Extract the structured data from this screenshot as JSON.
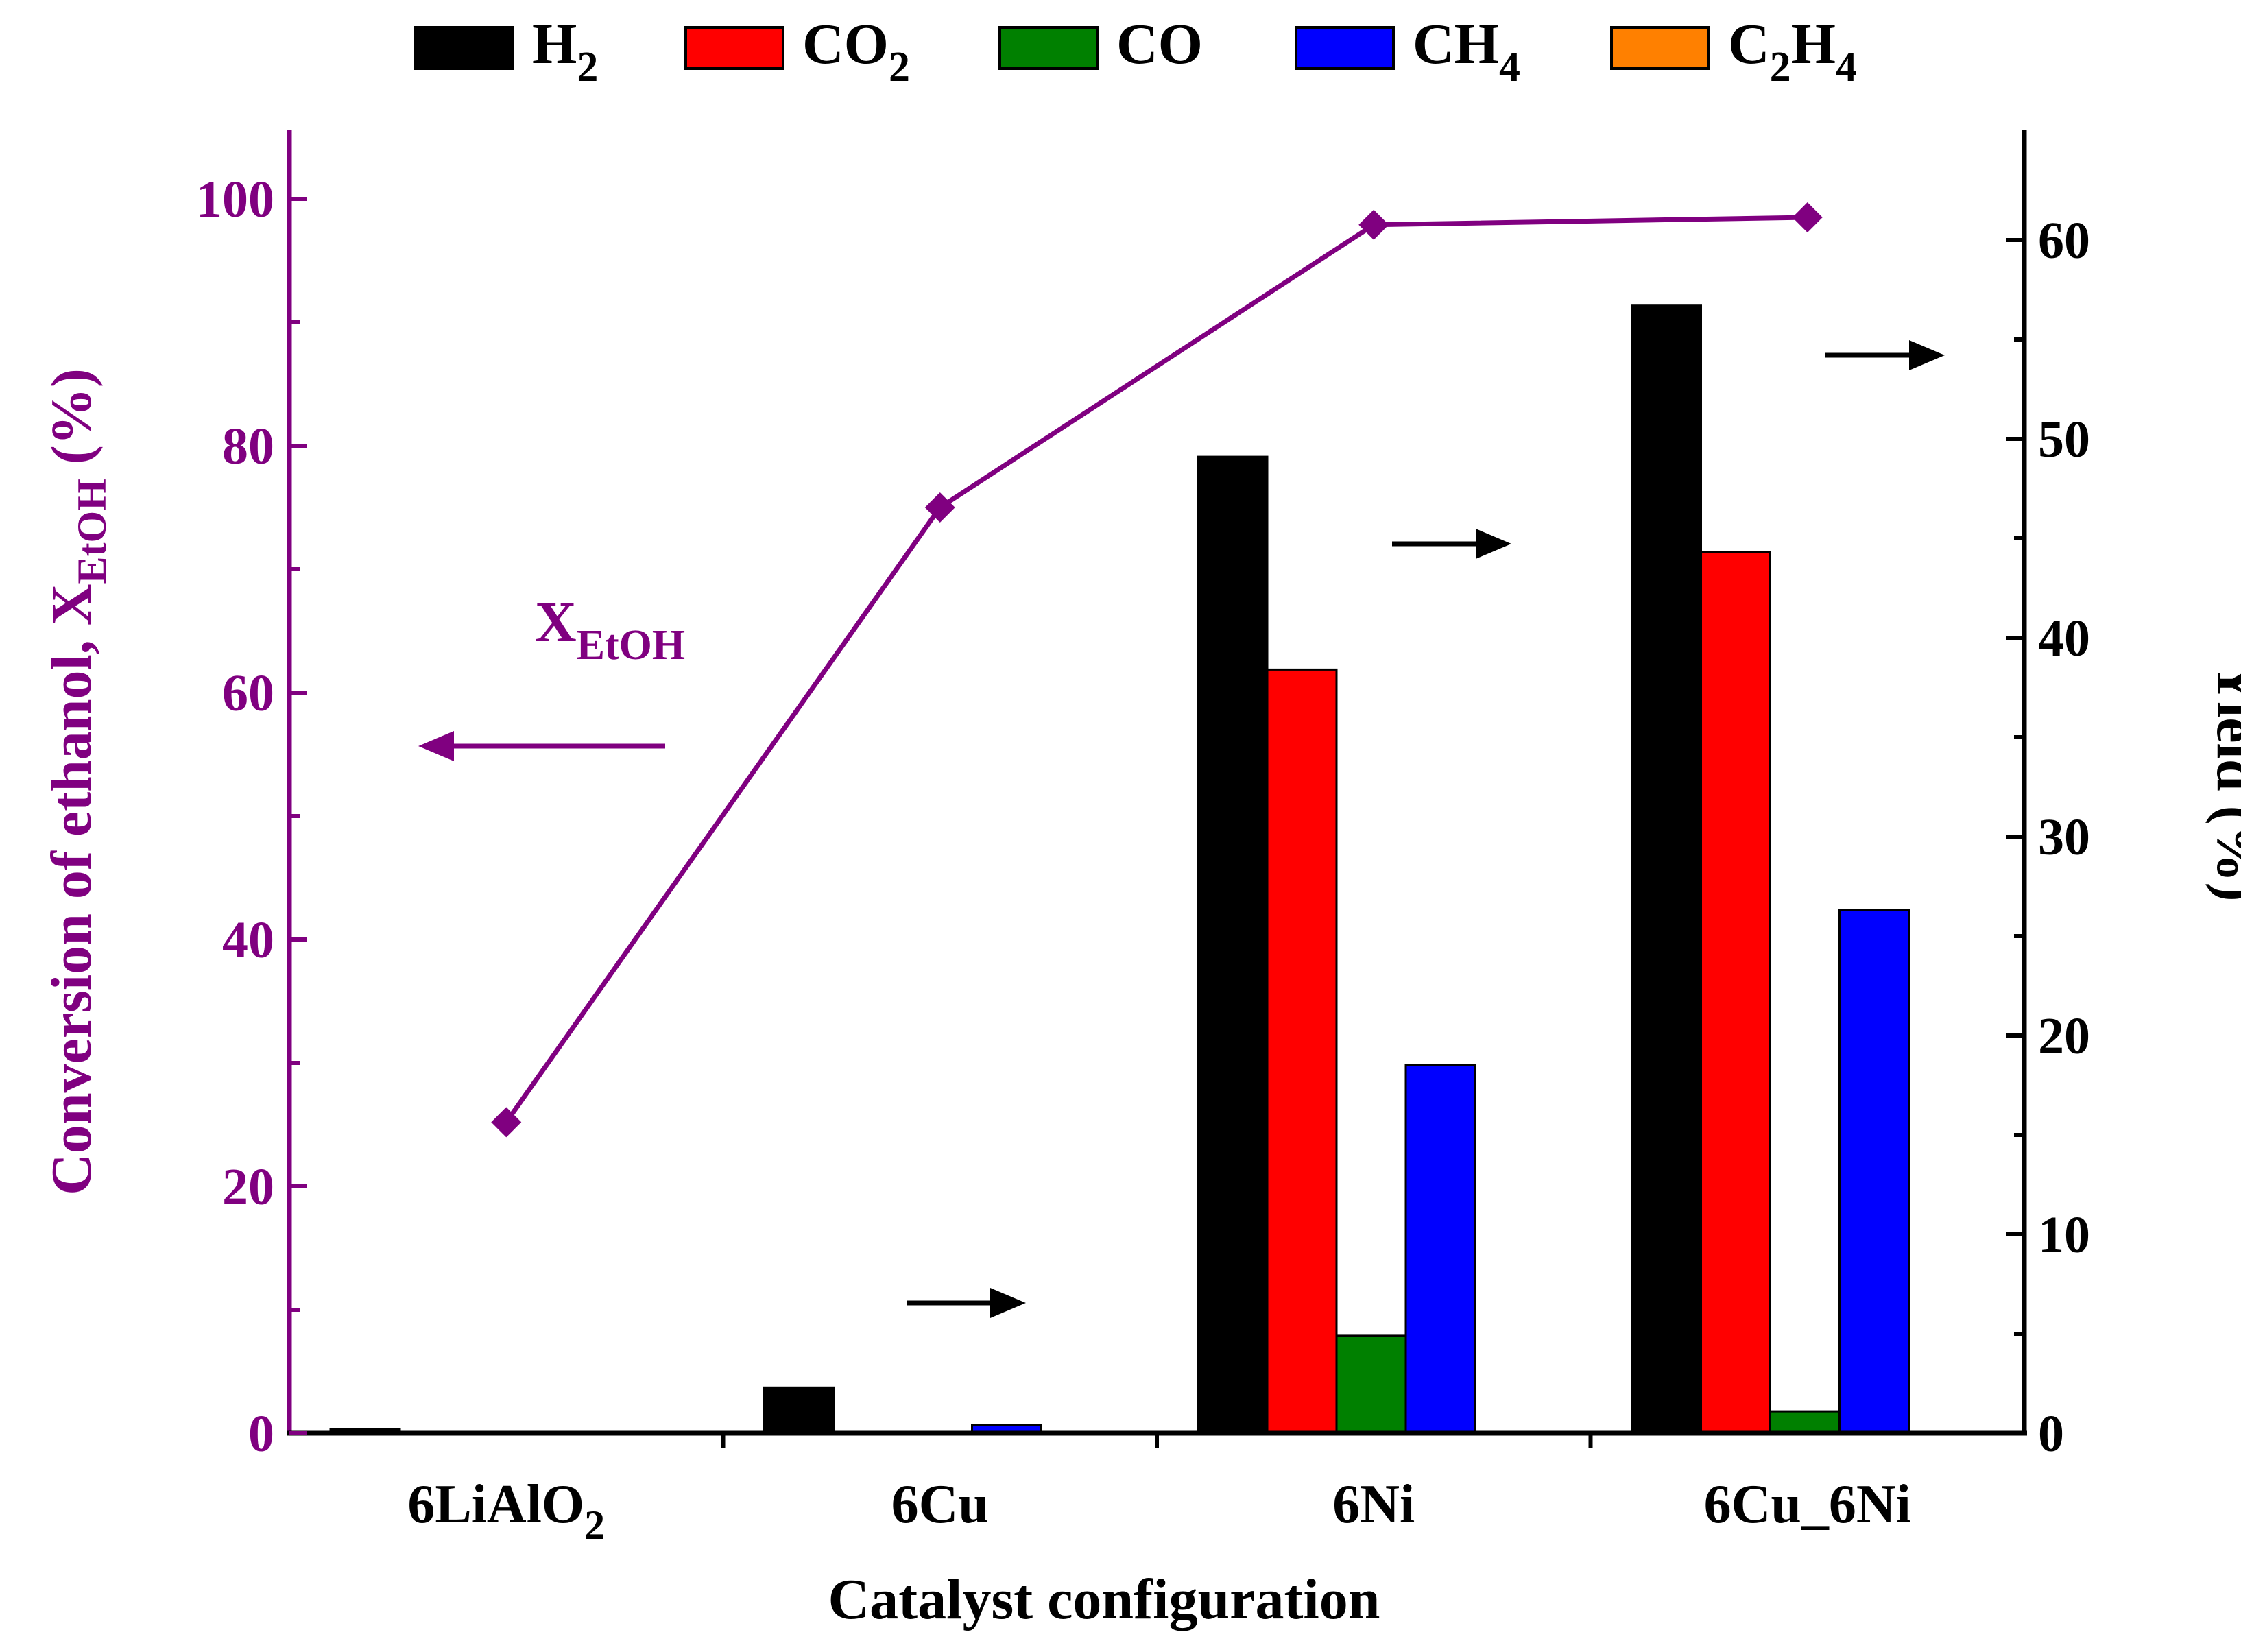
{
  "chart_data": {
    "type": "bar",
    "title": "",
    "xlabel": "Catalyst configuration",
    "ylabel_left": {
      "main": "Conversion of ethanol, X",
      "sub": "EtOH",
      "suffix": " (%)"
    },
    "ylabel_right": "Yield (%)",
    "categories": [
      {
        "main": "6LiAlO",
        "sub": "2"
      },
      {
        "main": "6Cu",
        "sub": ""
      },
      {
        "main": "6Ni",
        "sub": ""
      },
      {
        "main": "6Cu_6Ni",
        "sub": ""
      }
    ],
    "ylim_left": [
      0,
      105
    ],
    "ylim_right": [
      0,
      65
    ],
    "yticks_left": [
      0,
      20,
      40,
      60,
      80,
      100
    ],
    "yticks_right": [
      0,
      10,
      20,
      30,
      40,
      50,
      60
    ],
    "series": [
      {
        "name": "H",
        "sub": "2",
        "color": "#000000",
        "values": [
          0.2,
          2.3,
          49.1,
          56.7
        ]
      },
      {
        "name": "CO",
        "sub": "2",
        "color": "#ff0000",
        "values": [
          0.0,
          0.0,
          38.4,
          44.3
        ]
      },
      {
        "name": "CO",
        "sub": "",
        "color": "#008000",
        "values": [
          0.0,
          0.0,
          4.9,
          1.1
        ]
      },
      {
        "name": "CH",
        "sub": "4",
        "color": "#0000ff",
        "values": [
          0.0,
          0.4,
          18.5,
          26.3
        ]
      },
      {
        "name": "C",
        "sub": "2",
        "name2": "H",
        "sub2": "4",
        "color": "#ff8000",
        "values": [
          0.0,
          0.0,
          0.0,
          0.0
        ]
      }
    ],
    "line_series": {
      "name": "X",
      "sub": "EtOH",
      "color": "#800080",
      "values": [
        25.2,
        75.0,
        97.9,
        98.5
      ]
    },
    "legend_position": "top"
  }
}
